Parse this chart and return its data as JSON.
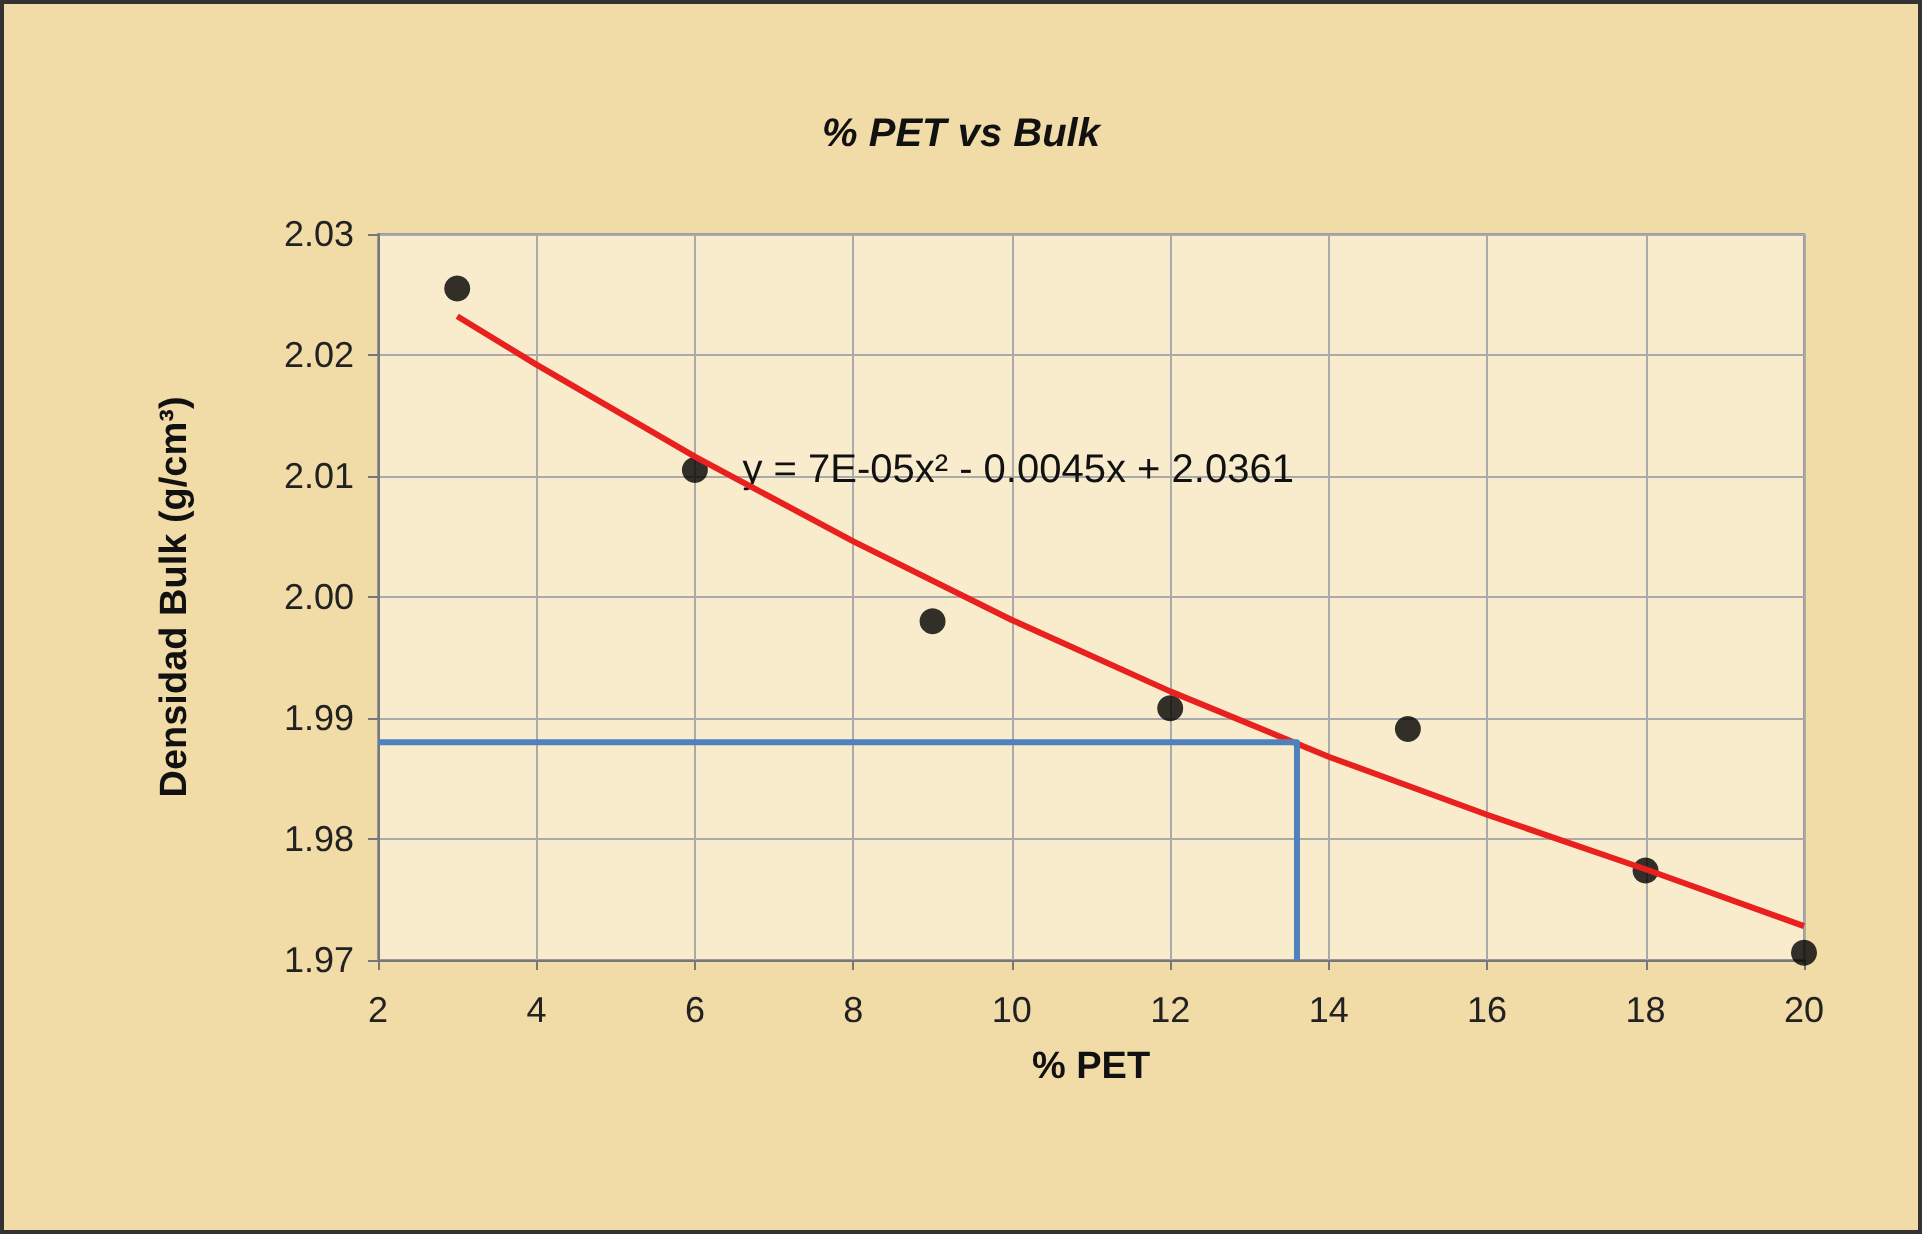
{
  "chart_data": {
    "type": "scatter",
    "title": "% PET vs Bulk",
    "xlabel": "% PET",
    "ylabel": "Densidad Bulk (g/cm³)",
    "xlim": [
      2,
      20
    ],
    "xticks": [
      2,
      4,
      6,
      8,
      10,
      12,
      14,
      16,
      18,
      20
    ],
    "ylim": [
      1.97,
      2.03
    ],
    "yticks": [
      1.97,
      1.98,
      1.99,
      {
        "value": 2.0,
        "label": "2.00"
      },
      2.01,
      2.02,
      2.03
    ],
    "grid": true,
    "marker": "circle",
    "series": [
      {
        "color": "#000000",
        "x": [
          3,
          6,
          9,
          12,
          15,
          18,
          20
        ],
        "values": [
          2.0255,
          2.0105,
          1.998,
          1.9908,
          1.9891,
          1.9774,
          1.9706
        ]
      },
      {
        "type": "line",
        "color": "#e8201e",
        "marker": "none",
        "line_style": "solid",
        "x": [
          3,
          4,
          6,
          8,
          10,
          12,
          14,
          16,
          18,
          20
        ],
        "values": [
          2.0232,
          2.0192,
          2.0116,
          2.0046,
          1.9981,
          1.9922,
          1.9868,
          1.982,
          1.9775,
          1.9728
        ]
      },
      {
        "type": "line",
        "color": "#4f81bd",
        "marker": "none",
        "line_style": "solid",
        "x": [
          2,
          13.6,
          13.6
        ],
        "values": [
          1.988,
          1.988,
          1.97
        ]
      }
    ],
    "annotations": [
      {
        "text": "y = 7E-05x² - 0.0045x + 2.0361",
        "x": 6.6,
        "y": 2.0105
      }
    ]
  }
}
